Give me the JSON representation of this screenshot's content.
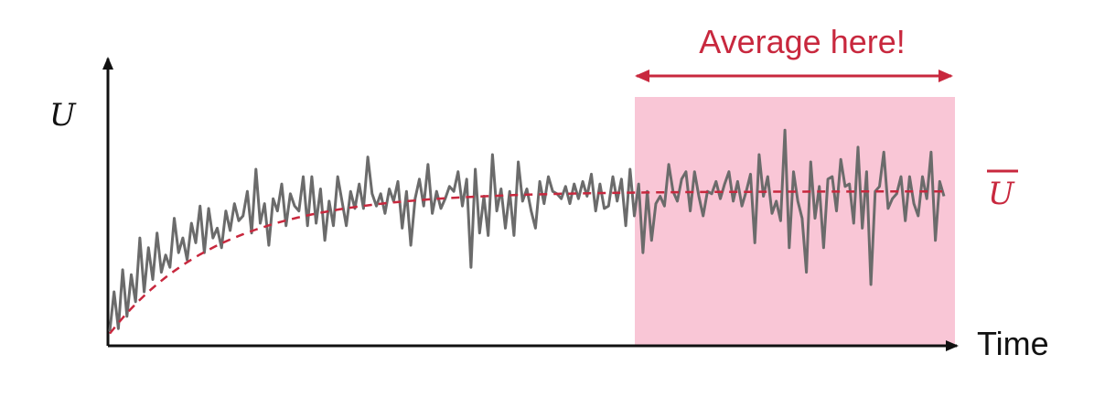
{
  "labels": {
    "y_axis": "U",
    "x_axis": "Time",
    "average_note": "Average here!",
    "mean_label": "U"
  },
  "colors": {
    "accent": "#c8283e",
    "signal": "#6b6b6b",
    "highlight": "#f9c6d6",
    "axis": "#111111"
  },
  "chart_data": {
    "type": "line",
    "series": [
      {
        "values": [
          0.06,
          0.22,
          0.07,
          0.31,
          0.12,
          0.29,
          0.18,
          0.44,
          0.22,
          0.4,
          0.27,
          0.46,
          0.3,
          0.37,
          0.32,
          0.52,
          0.38,
          0.44,
          0.35,
          0.5,
          0.42,
          0.57,
          0.38,
          0.56,
          0.44,
          0.48,
          0.4,
          0.55,
          0.47,
          0.58,
          0.51,
          0.53,
          0.63,
          0.46,
          0.72,
          0.5,
          0.58,
          0.41,
          0.6,
          0.55,
          0.66,
          0.49,
          0.62,
          0.57,
          0.55,
          0.69,
          0.49,
          0.69,
          0.5,
          0.64,
          0.43,
          0.59,
          0.49,
          0.69,
          0.59,
          0.49,
          0.63,
          0.56,
          0.66,
          0.56,
          0.77,
          0.62,
          0.57,
          0.62,
          0.54,
          0.64,
          0.59,
          0.67,
          0.48,
          0.63,
          0.41,
          0.6,
          0.68,
          0.57,
          0.74,
          0.54,
          0.63,
          0.56,
          0.6,
          0.65,
          0.63,
          0.71,
          0.57,
          0.68,
          0.32,
          0.72,
          0.46,
          0.61,
          0.45,
          0.78,
          0.55,
          0.64,
          0.48,
          0.63,
          0.45,
          0.75,
          0.59,
          0.64,
          0.55,
          0.48,
          0.67,
          0.58,
          0.69,
          0.63,
          0.62,
          0.6,
          0.65,
          0.58,
          0.66,
          0.6,
          0.67,
          0.61,
          0.7,
          0.55,
          0.66,
          0.56,
          0.57,
          0.69,
          0.59,
          0.68,
          0.49,
          0.72,
          0.53,
          0.66,
          0.38,
          0.63,
          0.43,
          0.58,
          0.61,
          0.57,
          0.74,
          0.63,
          0.59,
          0.68,
          0.71,
          0.55,
          0.71,
          0.61,
          0.53,
          0.63,
          0.62,
          0.67,
          0.6,
          0.66,
          0.71,
          0.59,
          0.67,
          0.57,
          0.63,
          0.7,
          0.42,
          0.78,
          0.61,
          0.69,
          0.54,
          0.59,
          0.51,
          0.88,
          0.4,
          0.71,
          0.59,
          0.52,
          0.3,
          0.75,
          0.52,
          0.65,
          0.4,
          0.68,
          0.69,
          0.55,
          0.76,
          0.65,
          0.66,
          0.5,
          0.81,
          0.48,
          0.71,
          0.25,
          0.63,
          0.65,
          0.79,
          0.56,
          0.6,
          0.62,
          0.69,
          0.51,
          0.69,
          0.58,
          0.53,
          0.69,
          0.6,
          0.79,
          0.43,
          0.67,
          0.61
        ]
      },
      {
        "style": "dashed",
        "curve": "saturating",
        "final": 0.63
      }
    ],
    "xlabel": "Time",
    "ylabel": "U",
    "highlight_span": {
      "start": 0.6,
      "end": 1.0
    }
  }
}
